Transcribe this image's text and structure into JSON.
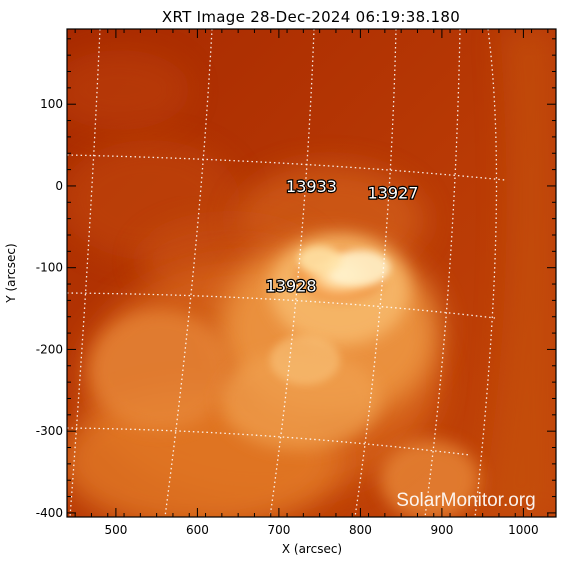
{
  "chart_data": {
    "type": "heatmap",
    "title": "XRT Image 28-Dec-2024 06:19:38.180",
    "xlabel": "X (arcsec)",
    "ylabel": "Y (arcsec)",
    "xlim": [
      440,
      1040
    ],
    "ylim": [
      -405,
      192
    ],
    "xticks": [
      500,
      600,
      700,
      800,
      900,
      1000
    ],
    "yticks": [
      100,
      0,
      -100,
      -200,
      -300,
      -400
    ],
    "grid": "on",
    "colors": {
      "background": "#b33000",
      "bright": "#ffe9b8",
      "frame": "#000000",
      "grid": "#ffffff"
    },
    "active_regions": [
      {
        "label": "13933",
        "x": 740,
        "y": 0
      },
      {
        "label": "13927",
        "x": 840,
        "y": -8
      },
      {
        "label": "13928",
        "x": 715,
        "y": -122
      }
    ],
    "watermark": "SolarMonitor.org"
  }
}
